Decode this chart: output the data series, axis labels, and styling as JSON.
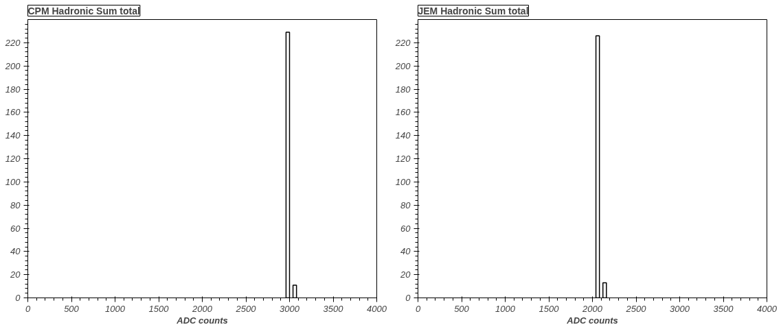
{
  "chart_data": [
    {
      "type": "histogram",
      "title": "CPM Hadronic Sum total",
      "xlabel": "ADC counts",
      "bins": [
        2960,
        3000,
        3040,
        3080
      ],
      "values": [
        229,
        0,
        11
      ],
      "color": "#ffffff",
      "xlim": [
        0,
        4000
      ],
      "ylim": [
        0,
        240
      ],
      "xticks": [
        0,
        500,
        1000,
        1500,
        2000,
        2500,
        3000,
        3500,
        4000
      ],
      "yticks": [
        0,
        20,
        40,
        60,
        80,
        100,
        120,
        140,
        160,
        180,
        200,
        220
      ],
      "grid": false
    },
    {
      "type": "histogram",
      "title": "JEM Hadronic Sum total",
      "xlabel": "ADC counts",
      "bins": [
        2040,
        2080,
        2120,
        2160
      ],
      "values": [
        226,
        0,
        13
      ],
      "color": "#ffffff",
      "xlim": [
        0,
        4000
      ],
      "ylim": [
        0,
        240
      ],
      "xticks": [
        0,
        500,
        1000,
        1500,
        2000,
        2500,
        3000,
        3500,
        4000
      ],
      "yticks": [
        0,
        20,
        40,
        60,
        80,
        100,
        120,
        140,
        160,
        180,
        200,
        220
      ],
      "grid": false
    }
  ]
}
